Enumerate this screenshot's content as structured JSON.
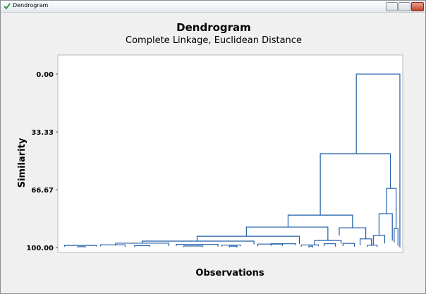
{
  "window": {
    "title": "Dendrogram"
  },
  "chart_data": {
    "type": "dendrogram",
    "title": "Dendrogram",
    "subtitle": "Complete Linkage, Euclidean Distance",
    "y_label": "Similarity",
    "x_label": "Observations",
    "color": "#1f5ea8",
    "ylim": [
      -11,
      102.8
    ],
    "y_inverted": true,
    "yticks": [
      {
        "value": 0,
        "label": "0.00"
      },
      33.33,
      66.67,
      {
        "value": 100,
        "label": "100.00"
      }
    ],
    "xlim": [
      -0.5,
      181.5
    ],
    "merges": [
      {
        "left": 157,
        "right": 180,
        "similarity": 0,
        "left_similarity": 45.9,
        "right_similarity": 100
      },
      {
        "left": 138,
        "right": 175,
        "similarity": 45.9,
        "left_similarity": 81.3,
        "right_similarity": 65.9
      },
      {
        "left": 173,
        "right": 178,
        "similarity": 65.9,
        "left_similarity": 80.5,
        "right_similarity": 89
      },
      {
        "left": 121,
        "right": 155,
        "similarity": 81.3,
        "left_similarity": 88.2,
        "right_similarity": 88.6
      },
      {
        "left": 99,
        "right": 142,
        "similarity": 88.2,
        "left_similarity": 93.5,
        "right_similarity": 95.9
      },
      {
        "left": 73,
        "right": 127,
        "similarity": 93.5,
        "left_similarity": 96.3,
        "right_similarity": 98
      },
      {
        "left": 44,
        "right": 103,
        "similarity": 96.3,
        "left_similarity": 97.5,
        "right_similarity": 98.2
      },
      {
        "left": 169,
        "right": 176,
        "similarity": 80.5,
        "left_similarity": 93,
        "right_similarity": 96
      },
      {
        "left": 177,
        "right": 179,
        "similarity": 89,
        "left_similarity": 97,
        "right_similarity": 99
      },
      {
        "left": 148,
        "right": 162,
        "similarity": 88.6,
        "left_similarity": 93,
        "right_similarity": 95
      },
      {
        "left": 135,
        "right": 149,
        "similarity": 95.9,
        "left_similarity": 98.5,
        "right_similarity": 97.8
      },
      {
        "left": 166,
        "right": 172,
        "similarity": 93,
        "left_similarity": 98.8,
        "right_similarity": 97.6
      },
      {
        "left": 159,
        "right": 165,
        "similarity": 95,
        "left_similarity": 98.6,
        "right_similarity": 99.1
      },
      {
        "left": 3,
        "right": 20,
        "similarity": 98.8,
        "left_similarity": 99.5,
        "right_similarity": 99.4
      },
      {
        "left": 22,
        "right": 35,
        "similarity": 98.4,
        "left_similarity": 99.3,
        "right_similarity": 99.6
      },
      {
        "left": 30,
        "right": 58,
        "similarity": 97.5,
        "left_similarity": 98.9,
        "right_similarity": 99.2
      },
      {
        "left": 62,
        "right": 84,
        "similarity": 98.2,
        "left_similarity": 99.1,
        "right_similarity": 99.4
      },
      {
        "left": 86,
        "right": 96,
        "similarity": 98.6,
        "left_similarity": 99.5,
        "right_similarity": 99.2
      },
      {
        "left": 105,
        "right": 118,
        "similarity": 98,
        "left_similarity": 99.3,
        "right_similarity": 99
      },
      {
        "left": 112,
        "right": 125,
        "similarity": 97.8,
        "left_similarity": 99,
        "right_similarity": 98.7
      },
      {
        "left": 128,
        "right": 137,
        "similarity": 98.5,
        "left_similarity": 99.4,
        "right_similarity": 99.2
      },
      {
        "left": 140,
        "right": 146,
        "similarity": 97.8,
        "left_similarity": 99.1,
        "right_similarity": 99.4
      },
      {
        "left": 150,
        "right": 156,
        "similarity": 97.6,
        "left_similarity": 99.2,
        "right_similarity": 99.5
      },
      {
        "left": 10,
        "right": 14,
        "similarity": 99.5,
        "left_similarity": 100,
        "right_similarity": 100
      },
      {
        "left": 40,
        "right": 48,
        "similarity": 98.9,
        "left_similarity": 99.7,
        "right_similarity": 99.6
      },
      {
        "left": 66,
        "right": 76,
        "similarity": 99.1,
        "left_similarity": 99.8,
        "right_similarity": 99.7
      },
      {
        "left": 90,
        "right": 94,
        "similarity": 99.2,
        "left_similarity": 100,
        "right_similarity": 100
      },
      {
        "left": 132,
        "right": 134,
        "similarity": 99.2,
        "left_similarity": 100,
        "right_similarity": 100
      },
      {
        "left": 163,
        "right": 168,
        "similarity": 98.6,
        "left_similarity": 99.6,
        "right_similarity": 99.7
      }
    ]
  }
}
